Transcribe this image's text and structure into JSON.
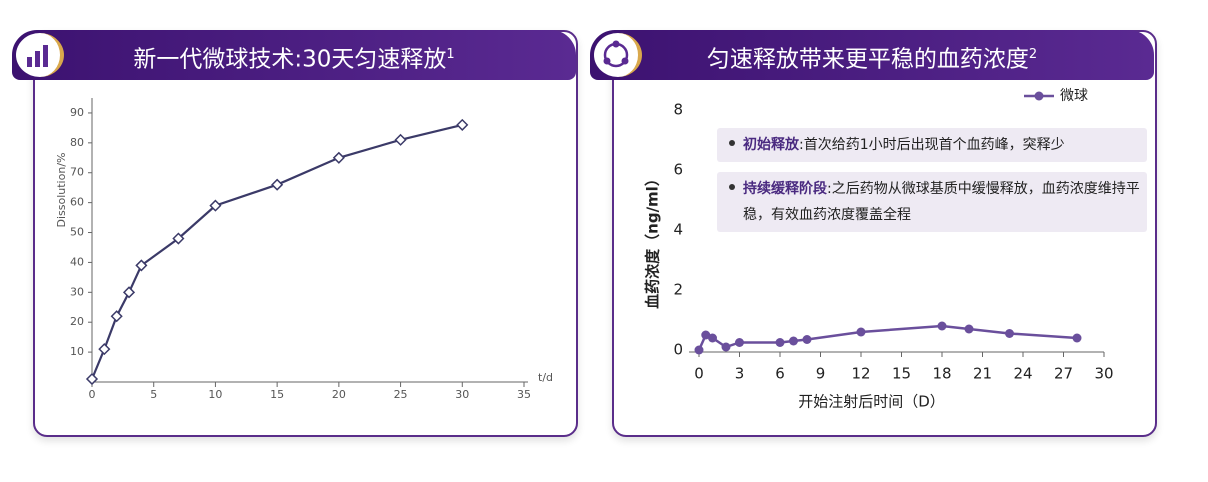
{
  "chart_data": [
    {
      "type": "line",
      "title": "新一代微球技术:30天匀速释放",
      "title_footnote": "1",
      "x_label": "t/d",
      "y_label": "Dissolution/%",
      "marker": "diamond",
      "x": [
        0,
        1,
        2,
        3,
        4,
        7,
        10,
        15,
        20,
        25,
        30
      ],
      "series": [
        {
          "color": "#3b3a68",
          "values": [
            1,
            11,
            22,
            30,
            39,
            48,
            59,
            66,
            75,
            81,
            86
          ]
        }
      ],
      "xlim": [
        0,
        35
      ],
      "xticks": [
        0,
        5,
        10,
        15,
        20,
        25,
        30,
        35
      ],
      "ylim": [
        0,
        95
      ],
      "yticks": [
        10,
        20,
        30,
        40,
        50,
        60,
        70,
        80,
        90
      ]
    },
    {
      "type": "line",
      "title": "匀速释放带来更平稳的血药浓度",
      "title_footnote": "2",
      "x_label": "开始注射后时间（D）",
      "y_label": "血药浓度（ng/ml）",
      "marker": "circle",
      "legend": "top-right",
      "x": [
        0,
        0.5,
        1,
        2,
        3,
        6,
        7,
        8,
        12,
        18,
        20,
        23,
        28
      ],
      "series": [
        {
          "name": "微球",
          "color": "#6a4f9c",
          "values": [
            0,
            0.5,
            0.4,
            0.1,
            0.25,
            0.25,
            0.3,
            0.35,
            0.6,
            0.8,
            0.7,
            0.55,
            0.4
          ]
        }
      ],
      "xlim": [
        0,
        30
      ],
      "xticks": [
        0,
        3,
        6,
        9,
        12,
        15,
        18,
        21,
        24,
        27,
        30
      ],
      "ylim": [
        0,
        8
      ],
      "yticks": [
        0,
        2,
        4,
        6,
        8
      ],
      "annotations": [
        {
          "heading": "初始释放",
          "text": ":首次给药1小时后出现首个血药峰，突释少"
        },
        {
          "heading": "持续缓释阶段",
          "text": ":之后药物从微球基质中缓慢释放，血药浓度维持平稳，有效血药浓度覆盖全程"
        }
      ]
    }
  ]
}
